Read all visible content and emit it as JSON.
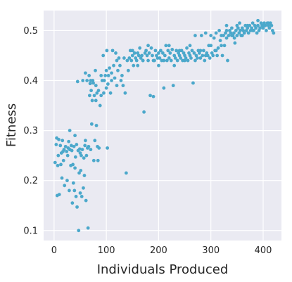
{
  "chart_data": {
    "type": "scatter",
    "xlabel": "Individuals Produced",
    "ylabel": "Fitness",
    "xlim": [
      -20,
      435
    ],
    "ylim": [
      0.08,
      0.54
    ],
    "xticks": [
      0,
      100,
      200,
      300,
      400
    ],
    "xtick_labels": [
      "0",
      "100",
      "200",
      "300",
      "400"
    ],
    "yticks": [
      0.1,
      0.2,
      0.3,
      0.4,
      0.5
    ],
    "ytick_labels": [
      "0.1",
      "0.2",
      "0.3",
      "0.4",
      "0.5"
    ],
    "grid": true,
    "background": "#EAEAF2",
    "point_color": "#4BA8CB",
    "series": [
      {
        "points": [
          [
            2,
            0.236
          ],
          [
            4,
            0.272
          ],
          [
            5,
            0.285
          ],
          [
            6,
            0.17
          ],
          [
            7,
            0.23
          ],
          [
            8,
            0.25
          ],
          [
            9,
            0.282
          ],
          [
            10,
            0.172
          ],
          [
            12,
            0.27
          ],
          [
            13,
            0.232
          ],
          [
            14,
            0.255
          ],
          [
            15,
            0.205
          ],
          [
            16,
            0.28
          ],
          [
            17,
            0.258
          ],
          [
            18,
            0.24
          ],
          [
            19,
            0.262
          ],
          [
            20,
            0.19
          ],
          [
            22,
            0.268
          ],
          [
            24,
            0.258
          ],
          [
            25,
            0.2
          ],
          [
            26,
            0.25
          ],
          [
            27,
            0.265
          ],
          [
            28,
            0.278
          ],
          [
            29,
            0.18
          ],
          [
            30,
            0.262
          ],
          [
            32,
            0.23
          ],
          [
            33,
            0.27
          ],
          [
            34,
            0.26
          ],
          [
            35,
            0.155
          ],
          [
            36,
            0.232
          ],
          [
            37,
            0.195
          ],
          [
            38,
            0.268
          ],
          [
            39,
            0.18
          ],
          [
            40,
            0.225
          ],
          [
            41,
            0.247
          ],
          [
            42,
            0.168
          ],
          [
            43,
            0.272
          ],
          [
            44,
            0.147
          ],
          [
            45,
            0.398
          ],
          [
            46,
            0.26
          ],
          [
            47,
            0.1
          ],
          [
            48,
            0.215
          ],
          [
            49,
            0.263
          ],
          [
            50,
            0.175
          ],
          [
            51,
            0.22
          ],
          [
            52,
            0.25
          ],
          [
            53,
            0.168
          ],
          [
            54,
            0.262
          ],
          [
            55,
            0.4
          ],
          [
            56,
            0.185
          ],
          [
            57,
            0.245
          ],
          [
            58,
            0.21
          ],
          [
            59,
            0.27
          ],
          [
            60,
            0.415
          ],
          [
            61,
            0.16
          ],
          [
            62,
            0.25
          ],
          [
            63,
            0.4
          ],
          [
            64,
            0.265
          ],
          [
            65,
            0.105
          ],
          [
            66,
            0.268
          ],
          [
            67,
            0.41
          ],
          [
            68,
            0.37
          ],
          [
            69,
            0.394
          ],
          [
            70,
            0.262
          ],
          [
            71,
            0.38
          ],
          [
            72,
            0.313
          ],
          [
            73,
            0.36
          ],
          [
            74,
            0.4
          ],
          [
            75,
            0.395
          ],
          [
            76,
            0.24
          ],
          [
            77,
            0.37
          ],
          [
            78,
            0.28
          ],
          [
            79,
            0.42
          ],
          [
            80,
            0.39
          ],
          [
            81,
            0.31
          ],
          [
            82,
            0.375
          ],
          [
            83,
            0.268
          ],
          [
            84,
            0.24
          ],
          [
            85,
            0.38
          ],
          [
            86,
            0.265
          ],
          [
            88,
            0.35
          ],
          [
            90,
            0.37
          ],
          [
            92,
            0.4
          ],
          [
            94,
            0.45
          ],
          [
            95,
            0.375
          ],
          [
            96,
            0.4
          ],
          [
            98,
            0.41
          ],
          [
            100,
            0.385
          ],
          [
            101,
            0.46
          ],
          [
            102,
            0.265
          ],
          [
            103,
            0.393
          ],
          [
            104,
            0.41
          ],
          [
            106,
            0.425
          ],
          [
            108,
            0.375
          ],
          [
            110,
            0.415
          ],
          [
            112,
            0.46
          ],
          [
            114,
            0.43
          ],
          [
            116,
            0.405
          ],
          [
            118,
            0.455
          ],
          [
            120,
            0.39
          ],
          [
            122,
            0.42
          ],
          [
            124,
            0.445
          ],
          [
            126,
            0.43
          ],
          [
            128,
            0.4
          ],
          [
            130,
            0.41
          ],
          [
            132,
            0.39
          ],
          [
            134,
            0.445
          ],
          [
            136,
            0.375
          ],
          [
            138,
            0.215
          ],
          [
            140,
            0.44
          ],
          [
            142,
            0.42
          ],
          [
            144,
            0.445
          ],
          [
            146,
            0.46
          ],
          [
            148,
            0.44
          ],
          [
            150,
            0.45
          ],
          [
            152,
            0.43
          ],
          [
            154,
            0.455
          ],
          [
            156,
            0.445
          ],
          [
            158,
            0.44
          ],
          [
            160,
            0.455
          ],
          [
            162,
            0.45
          ],
          [
            164,
            0.465
          ],
          [
            166,
            0.445
          ],
          [
            168,
            0.45
          ],
          [
            170,
            0.44
          ],
          [
            172,
            0.337
          ],
          [
            174,
            0.455
          ],
          [
            176,
            0.46
          ],
          [
            178,
            0.45
          ],
          [
            180,
            0.44
          ],
          [
            182,
            0.455
          ],
          [
            184,
            0.37
          ],
          [
            186,
            0.465
          ],
          [
            188,
            0.45
          ],
          [
            190,
            0.368
          ],
          [
            192,
            0.44
          ],
          [
            194,
            0.46
          ],
          [
            196,
            0.45
          ],
          [
            198,
            0.445
          ],
          [
            200,
            0.455
          ],
          [
            202,
            0.445
          ],
          [
            204,
            0.46
          ],
          [
            206,
            0.44
          ],
          [
            208,
            0.455
          ],
          [
            210,
            0.385
          ],
          [
            212,
            0.45
          ],
          [
            214,
            0.47
          ],
          [
            216,
            0.44
          ],
          [
            218,
            0.46
          ],
          [
            220,
            0.445
          ],
          [
            222,
            0.455
          ],
          [
            224,
            0.44
          ],
          [
            226,
            0.462
          ],
          [
            228,
            0.39
          ],
          [
            230,
            0.45
          ],
          [
            232,
            0.445
          ],
          [
            234,
            0.46
          ],
          [
            236,
            0.44
          ],
          [
            238,
            0.455
          ],
          [
            240,
            0.45
          ],
          [
            242,
            0.445
          ],
          [
            244,
            0.46
          ],
          [
            246,
            0.44
          ],
          [
            248,
            0.455
          ],
          [
            250,
            0.45
          ],
          [
            252,
            0.445
          ],
          [
            254,
            0.465
          ],
          [
            256,
            0.44
          ],
          [
            258,
            0.455
          ],
          [
            260,
            0.45
          ],
          [
            262,
            0.445
          ],
          [
            264,
            0.46
          ],
          [
            266,
            0.395
          ],
          [
            268,
            0.455
          ],
          [
            270,
            0.49
          ],
          [
            272,
            0.45
          ],
          [
            274,
            0.445
          ],
          [
            276,
            0.46
          ],
          [
            278,
            0.455
          ],
          [
            280,
            0.445
          ],
          [
            282,
            0.49
          ],
          [
            284,
            0.45
          ],
          [
            286,
            0.46
          ],
          [
            288,
            0.44
          ],
          [
            290,
            0.495
          ],
          [
            292,
            0.455
          ],
          [
            294,
            0.45
          ],
          [
            296,
            0.47
          ],
          [
            298,
            0.445
          ],
          [
            300,
            0.49
          ],
          [
            302,
            0.455
          ],
          [
            304,
            0.45
          ],
          [
            306,
            0.485
          ],
          [
            308,
            0.46
          ],
          [
            310,
            0.495
          ],
          [
            312,
            0.45
          ],
          [
            314,
            0.465
          ],
          [
            316,
            0.5
          ],
          [
            318,
            0.48
          ],
          [
            320,
            0.47
          ],
          [
            322,
            0.45
          ],
          [
            324,
            0.49
          ],
          [
            326,
            0.47
          ],
          [
            328,
            0.495
          ],
          [
            330,
            0.485
          ],
          [
            332,
            0.44
          ],
          [
            334,
            0.49
          ],
          [
            336,
            0.5
          ],
          [
            338,
            0.495
          ],
          [
            340,
            0.505
          ],
          [
            342,
            0.49
          ],
          [
            344,
            0.495
          ],
          [
            346,
            0.475
          ],
          [
            348,
            0.5
          ],
          [
            350,
            0.49
          ],
          [
            352,
            0.505
          ],
          [
            354,
            0.495
          ],
          [
            356,
            0.5
          ],
          [
            358,
            0.49
          ],
          [
            360,
            0.505
          ],
          [
            362,
            0.5
          ],
          [
            364,
            0.495
          ],
          [
            366,
            0.51
          ],
          [
            368,
            0.5
          ],
          [
            370,
            0.505
          ],
          [
            372,
            0.495
          ],
          [
            374,
            0.51
          ],
          [
            376,
            0.5
          ],
          [
            378,
            0.505
          ],
          [
            380,
            0.515
          ],
          [
            382,
            0.5
          ],
          [
            384,
            0.51
          ],
          [
            386,
            0.505
          ],
          [
            388,
            0.495
          ],
          [
            390,
            0.51
          ],
          [
            392,
            0.5
          ],
          [
            394,
            0.505
          ],
          [
            396,
            0.515
          ],
          [
            398,
            0.51
          ],
          [
            400,
            0.505
          ],
          [
            402,
            0.515
          ],
          [
            404,
            0.51
          ],
          [
            406,
            0.5
          ],
          [
            408,
            0.515
          ],
          [
            410,
            0.51
          ],
          [
            412,
            0.505
          ],
          [
            414,
            0.515
          ],
          [
            416,
            0.51
          ],
          [
            418,
            0.5
          ],
          [
            420,
            0.495
          ],
          [
            30,
            0.3
          ],
          [
            40,
            0.29
          ],
          [
            50,
            0.255
          ],
          [
            60,
            0.28
          ],
          [
            70,
            0.4
          ],
          [
            80,
            0.36
          ],
          [
            90,
            0.41
          ],
          [
            100,
            0.42
          ],
          [
            110,
            0.4
          ],
          [
            120,
            0.44
          ],
          [
            150,
            0.46
          ],
          [
            160,
            0.43
          ],
          [
            170,
            0.44
          ],
          [
            180,
            0.47
          ],
          [
            190,
            0.44
          ],
          [
            200,
            0.43
          ],
          [
            210,
            0.44
          ],
          [
            220,
            0.47
          ],
          [
            230,
            0.43
          ],
          [
            240,
            0.46
          ],
          [
            250,
            0.44
          ],
          [
            260,
            0.47
          ],
          [
            270,
            0.44
          ],
          [
            280,
            0.46
          ],
          [
            290,
            0.45
          ],
          [
            300,
            0.47
          ],
          [
            310,
            0.46
          ],
          [
            320,
            0.49
          ],
          [
            330,
            0.5
          ],
          [
            340,
            0.49
          ],
          [
            350,
            0.51
          ],
          [
            360,
            0.49
          ],
          [
            370,
            0.51
          ],
          [
            380,
            0.5
          ],
          [
            390,
            0.52
          ],
          [
            400,
            0.51
          ],
          [
            410,
            0.515
          ],
          [
            330,
            0.51
          ],
          [
            345,
            0.485
          ],
          [
            355,
            0.515
          ]
        ]
      }
    ]
  }
}
